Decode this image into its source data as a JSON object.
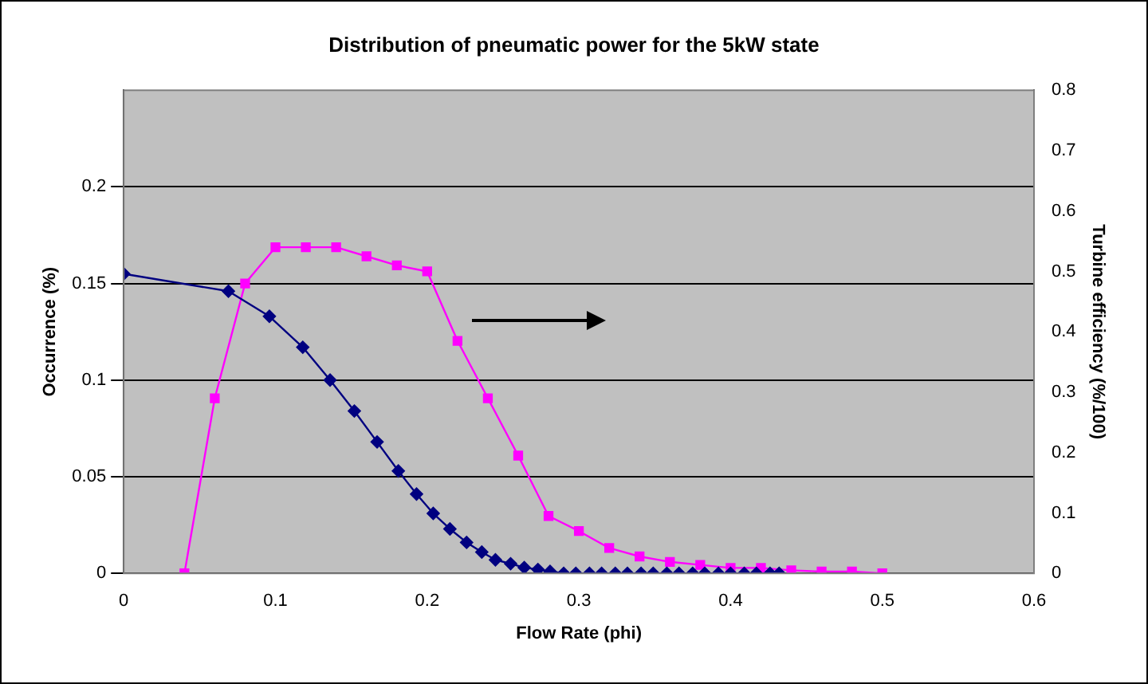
{
  "chart_data": {
    "type": "line",
    "title": "Distribution of pneumatic power for the 5kW state",
    "xlabel": "Flow Rate (phi)",
    "ylabel": "Occurrence (%)",
    "y2label": "Turbine efficiency (%/100)",
    "xlim": [
      0,
      0.6
    ],
    "xticks": [
      0,
      0.1,
      0.2,
      0.3,
      0.4,
      0.5,
      0.6
    ],
    "ylim": [
      0,
      0.25
    ],
    "yticks": [
      0,
      0.05,
      0.1,
      0.15,
      0.2
    ],
    "y2lim": [
      0,
      0.8
    ],
    "y2ticks": [
      0,
      0.1,
      0.2,
      0.3,
      0.4,
      0.5,
      0.6,
      0.7,
      0.8
    ],
    "grid": "y",
    "legend": false,
    "line_style": "solid",
    "series": [
      {
        "color": "#000080",
        "marker": "diamond",
        "x": [
          0,
          0.069,
          0.096,
          0.118,
          0.136,
          0.152,
          0.167,
          0.181,
          0.193,
          0.204,
          0.215,
          0.226,
          0.236,
          0.245,
          0.255,
          0.264,
          0.273,
          0.281,
          0.29,
          0.298,
          0.307,
          0.315,
          0.324,
          0.332,
          0.341,
          0.349,
          0.358,
          0.366,
          0.375,
          0.383,
          0.392,
          0.4,
          0.409,
          0.417,
          0.426,
          0.432
        ],
        "values": [
          0.155,
          0.146,
          0.133,
          0.117,
          0.1,
          0.084,
          0.068,
          0.053,
          0.041,
          0.031,
          0.023,
          0.016,
          0.011,
          0.007,
          0.005,
          0.003,
          0.002,
          0.001,
          0,
          0,
          0,
          0,
          0,
          0,
          0,
          0,
          0,
          0,
          0,
          0,
          0,
          0,
          0,
          0,
          0,
          0
        ]
      },
      {
        "color": "#ff00ff",
        "marker": "square",
        "axis": "y2",
        "x": [
          0.04,
          0.06,
          0.08,
          0.1,
          0.12,
          0.14,
          0.16,
          0.18,
          0.2,
          0.22,
          0.24,
          0.26,
          0.28,
          0.3,
          0.32,
          0.34,
          0.36,
          0.38,
          0.4,
          0.42,
          0.44,
          0.46,
          0.48,
          0.5
        ],
        "values": [
          0,
          0.29,
          0.48,
          0.54,
          0.54,
          0.54,
          0.525,
          0.51,
          0.5,
          0.385,
          0.29,
          0.195,
          0.095,
          0.07,
          0.042,
          0.028,
          0.019,
          0.014,
          0.009,
          0.009,
          0.005,
          0.003,
          0.003,
          0
        ]
      }
    ]
  }
}
